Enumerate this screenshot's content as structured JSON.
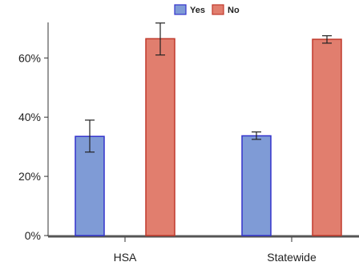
{
  "chart_data": {
    "type": "bar",
    "categories": [
      "HSA",
      "Statewide"
    ],
    "series": [
      {
        "name": "Yes",
        "values": [
          33.5,
          33.7
        ],
        "err_low": [
          28.2,
          32.5
        ],
        "err_high": [
          39.0,
          35.0
        ],
        "color": "#7f9bd6",
        "stroke": "#3333cc"
      },
      {
        "name": "No",
        "values": [
          66.5,
          66.3
        ],
        "err_low": [
          61.0,
          65.0
        ],
        "err_high": [
          71.8,
          67.5
        ],
        "color": "#e17e6e",
        "stroke": "#c0392b"
      }
    ],
    "y_ticks": [
      0,
      20,
      40,
      60
    ],
    "y_tick_labels": [
      "0%",
      "20%",
      "40%",
      "60%"
    ],
    "ylim": [
      0,
      72
    ],
    "legend_placement": "top-center",
    "grid": false,
    "title": "",
    "xlabel": "",
    "ylabel": ""
  }
}
